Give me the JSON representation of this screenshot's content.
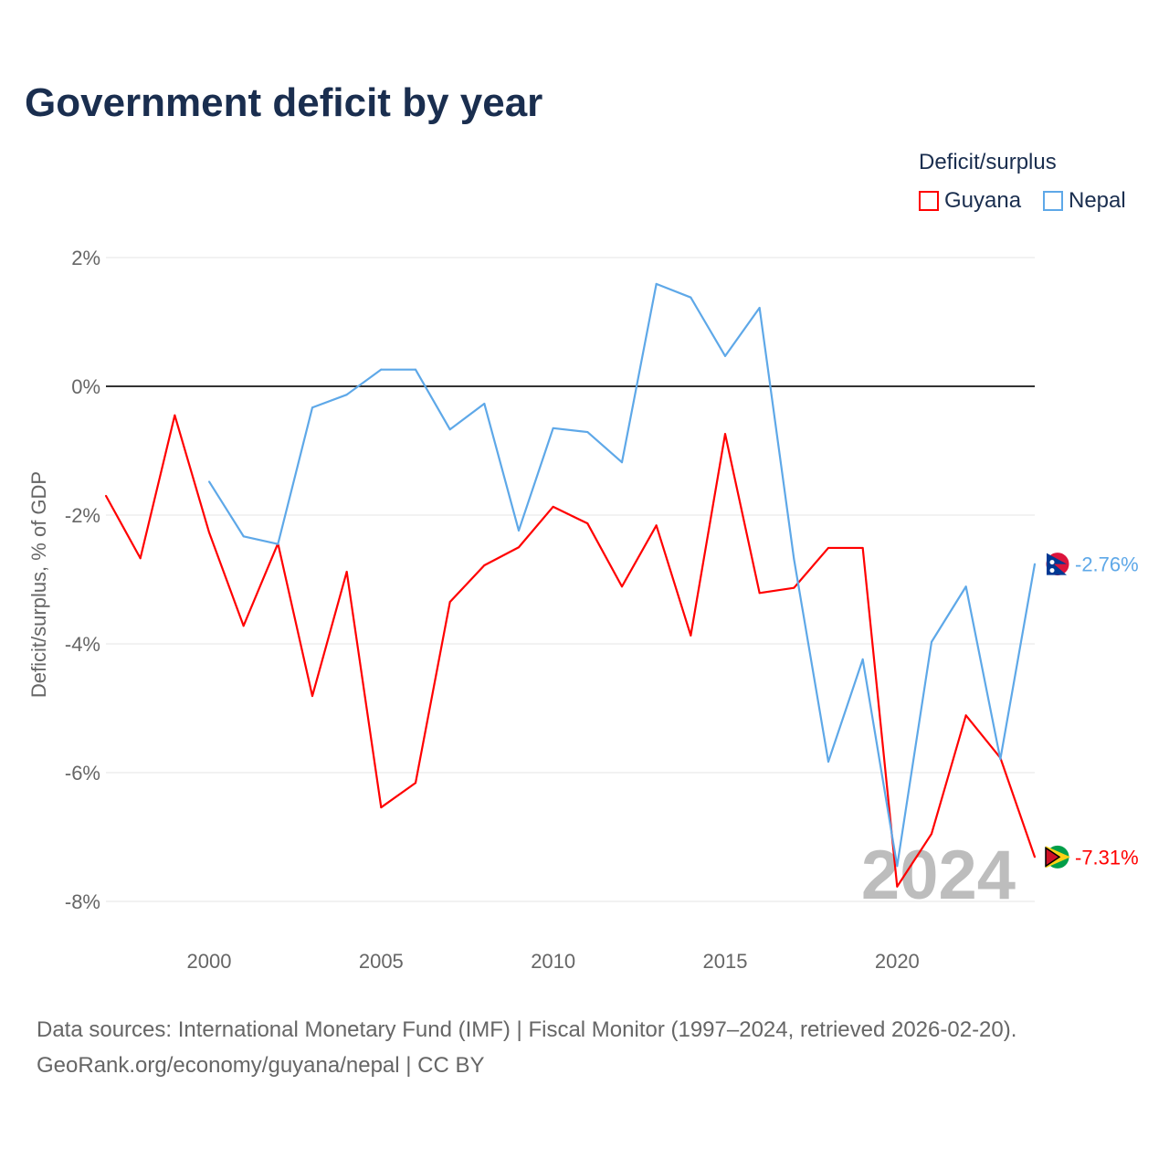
{
  "title": "Government deficit by year",
  "legend": {
    "title": "Deficit/surplus",
    "items": [
      {
        "name": "Guyana",
        "color": "#ff0000"
      },
      {
        "name": "Nepal",
        "color": "#5ea8e8"
      }
    ]
  },
  "footer": {
    "line1": "Data sources: International Monetary Fund (IMF) | Fiscal Monitor (1997–2024, retrieved 2026-02-20).",
    "line2": "GeoRank.org/economy/guyana/nepal | CC BY"
  },
  "chart_data": {
    "type": "line",
    "title": "Government deficit by year",
    "xlabel": "",
    "ylabel": "Deficit/surplus, % of GDP",
    "xlim": [
      1997,
      2024
    ],
    "ylim": [
      -8,
      2
    ],
    "yticks": [
      2,
      0,
      -2,
      -4,
      -6,
      -8
    ],
    "ytick_labels": [
      "2%",
      "0%",
      "-2%",
      "-4%",
      "-6%",
      "-8%"
    ],
    "xticks": [
      2000,
      2005,
      2010,
      2015,
      2020
    ],
    "xtick_labels": [
      "2000",
      "2005",
      "2010",
      "2015",
      "2020"
    ],
    "watermark_year": "2024",
    "series": [
      {
        "name": "Guyana",
        "color": "#ff0000",
        "end_label": "-7.31%",
        "x": [
          1997,
          1998,
          1999,
          2000,
          2001,
          2002,
          2003,
          2004,
          2005,
          2006,
          2007,
          2008,
          2009,
          2010,
          2011,
          2012,
          2013,
          2014,
          2015,
          2016,
          2017,
          2018,
          2019,
          2020,
          2021,
          2022,
          2023,
          2024
        ],
        "values": [
          -1.7,
          -2.67,
          -0.45,
          -2.27,
          -3.72,
          -2.44,
          -4.81,
          -2.88,
          -6.54,
          -6.16,
          -3.35,
          -2.78,
          -2.5,
          -1.87,
          -2.13,
          -3.11,
          -2.16,
          -3.87,
          -0.74,
          -3.21,
          -3.13,
          -2.51,
          -2.51,
          -7.77,
          -6.95,
          -5.11,
          -5.77,
          -7.31
        ]
      },
      {
        "name": "Nepal",
        "color": "#5ea8e8",
        "end_label": "-2.76%",
        "x": [
          2000,
          2001,
          2002,
          2003,
          2004,
          2005,
          2006,
          2007,
          2008,
          2009,
          2010,
          2011,
          2012,
          2013,
          2014,
          2015,
          2016,
          2017,
          2018,
          2019,
          2020,
          2021,
          2022,
          2023,
          2024
        ],
        "values": [
          -1.48,
          -2.33,
          -2.45,
          -0.33,
          -0.13,
          0.26,
          0.26,
          -0.67,
          -0.27,
          -2.24,
          -0.65,
          -0.71,
          -1.18,
          1.59,
          1.38,
          0.47,
          1.22,
          -2.68,
          -5.83,
          -4.24,
          -7.45,
          -3.97,
          -3.11,
          -5.79,
          -2.76
        ]
      }
    ]
  }
}
